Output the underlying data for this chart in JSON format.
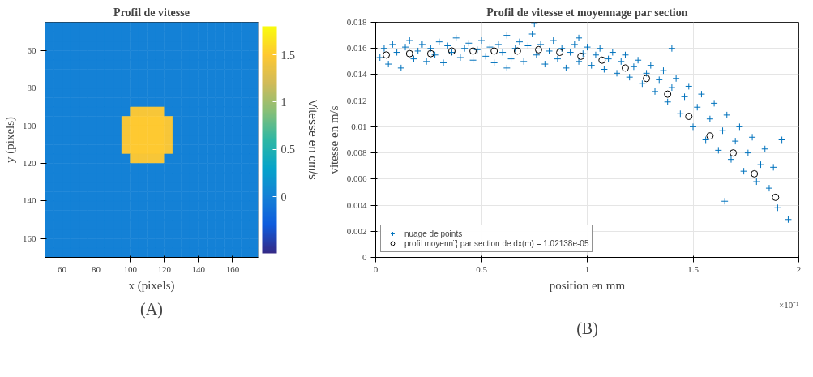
{
  "chart_data": [
    {
      "type": "heatmap",
      "title": "Profil de vitesse",
      "xlabel": "x (pixels)",
      "ylabel": "y (pixels)",
      "clabel": "Vitesse en cm/s",
      "annotations": [
        "(A)"
      ],
      "x": [
        52.5,
        57.5,
        62.5,
        67.5,
        72.5,
        77.5,
        82.5,
        87.5,
        92.5,
        97.5,
        102.5,
        107.5,
        112.5,
        117.5,
        122.5,
        127.5,
        132.5,
        137.5,
        142.5,
        147.5,
        152.5,
        157.5,
        162.5,
        167.5,
        172.5
      ],
      "y": [
        47.5,
        52.5,
        57.5,
        62.5,
        67.5,
        72.5,
        77.5,
        82.5,
        87.5,
        92.5,
        97.5,
        102.5,
        107.5,
        112.5,
        117.5,
        122.5,
        127.5,
        132.5,
        137.5,
        142.5,
        147.5,
        152.5,
        157.5,
        162.5,
        167.5
      ],
      "xlim": [
        50,
        175
      ],
      "ylim": [
        170,
        45
      ],
      "xticks": [
        60,
        80,
        100,
        120,
        140,
        160
      ],
      "yticks": [
        60,
        80,
        100,
        120,
        140,
        160
      ],
      "clim": [
        -0.6,
        1.8
      ],
      "cticks": [
        0,
        0.5,
        1,
        1.5
      ],
      "grid": false,
      "cells": [
        [
          0,
          0,
          0,
          0,
          0,
          0,
          0,
          0,
          0,
          0,
          0,
          0,
          0,
          0,
          0,
          0,
          0,
          0,
          0,
          0,
          0,
          0,
          0,
          0,
          0
        ],
        [
          0,
          0,
          0,
          0,
          0,
          0,
          0,
          0,
          0,
          0,
          0,
          0,
          0,
          0,
          0,
          0,
          0,
          0,
          0,
          0,
          0,
          0,
          0,
          0,
          0
        ],
        [
          0,
          0,
          0,
          0,
          0,
          0,
          0,
          0,
          0,
          0,
          0,
          0,
          0,
          0,
          0,
          0,
          0,
          0,
          0,
          0,
          0,
          0,
          0,
          0,
          0
        ],
        [
          0,
          0,
          0,
          0,
          0,
          0,
          0,
          0,
          0,
          0,
          0,
          0,
          0,
          0,
          0,
          0,
          0,
          0,
          0,
          0,
          0,
          0,
          0,
          0,
          0
        ],
        [
          0,
          0,
          0,
          0,
          0,
          0,
          0,
          0,
          0,
          0,
          0,
          0,
          0,
          0,
          0,
          0,
          0,
          0,
          0,
          0,
          0,
          0,
          0,
          0,
          0
        ],
        [
          0,
          0,
          0,
          0,
          0,
          0,
          0,
          0,
          0,
          0,
          0,
          0,
          0,
          0,
          0,
          0,
          0,
          0,
          0,
          0,
          0,
          0,
          0,
          0,
          0
        ],
        [
          0,
          0,
          0,
          0,
          0,
          0,
          0,
          0,
          0,
          0,
          0,
          0,
          0,
          0,
          0,
          0,
          0,
          0,
          0,
          0,
          0,
          0,
          0,
          0,
          0
        ],
        [
          0,
          0,
          0,
          0,
          0,
          0,
          0,
          0,
          0,
          0,
          0,
          0,
          0,
          0,
          0,
          0,
          0,
          0,
          0,
          0,
          0,
          0,
          0,
          0,
          0
        ],
        [
          0,
          0,
          0,
          0,
          0,
          0,
          0,
          0,
          0,
          0,
          0,
          0,
          0,
          0,
          0,
          0,
          0,
          0,
          0,
          0,
          0,
          0,
          0,
          0,
          0
        ],
        [
          0,
          0,
          0,
          0,
          0,
          0,
          0,
          0,
          0,
          0,
          1.45,
          1.45,
          1.45,
          1.45,
          0,
          0,
          0,
          0,
          0,
          0,
          0,
          0,
          0,
          0,
          0
        ],
        [
          0,
          0,
          0,
          0,
          0,
          0,
          0,
          0,
          0,
          1.45,
          1.5,
          1.5,
          1.5,
          1.5,
          1.45,
          0,
          0,
          0,
          0,
          0,
          0,
          0,
          0,
          0,
          0
        ],
        [
          0,
          0,
          0,
          0,
          0,
          0,
          0,
          0,
          0,
          1.45,
          1.5,
          1.5,
          1.5,
          1.5,
          1.45,
          0,
          0,
          0,
          0,
          0,
          0,
          0,
          0,
          0,
          0
        ],
        [
          0,
          0,
          0,
          0,
          0,
          0,
          0,
          0,
          0,
          1.45,
          1.5,
          1.5,
          1.5,
          1.5,
          1.45,
          0,
          0,
          0,
          0,
          0,
          0,
          0,
          0,
          0,
          0
        ],
        [
          0,
          0,
          0,
          0,
          0,
          0,
          0,
          0,
          0,
          1.45,
          1.5,
          1.5,
          1.5,
          1.5,
          1.45,
          0,
          0,
          0,
          0,
          0,
          0,
          0,
          0,
          0,
          0
        ],
        [
          0,
          0,
          0,
          0,
          0,
          0,
          0,
          0,
          0,
          0,
          1.45,
          1.45,
          1.45,
          1.45,
          0,
          0,
          0,
          0,
          0,
          0,
          0,
          0,
          0,
          0,
          0
        ],
        [
          0,
          0,
          0,
          0,
          0,
          0,
          0,
          0,
          0,
          0,
          0,
          0,
          0,
          0,
          0,
          0,
          0,
          0,
          0,
          0,
          0,
          0,
          0,
          0,
          0
        ],
        [
          0,
          0,
          0,
          0,
          0,
          0,
          0,
          0,
          0,
          0,
          0,
          0,
          0,
          0,
          0,
          0,
          0,
          0,
          0,
          0,
          0,
          0,
          0,
          0,
          0
        ],
        [
          0,
          0,
          0,
          0,
          0,
          0,
          0,
          0,
          0,
          0,
          0,
          0,
          0,
          0,
          0,
          0,
          0,
          0,
          0,
          0,
          0,
          0,
          0,
          0,
          0
        ],
        [
          0,
          0,
          0,
          0,
          0,
          0,
          0,
          0,
          0,
          0,
          0,
          0,
          0,
          0,
          0,
          0,
          0,
          0,
          0,
          0,
          0,
          0,
          0,
          0,
          0
        ],
        [
          0,
          0,
          0,
          0,
          0,
          0,
          0,
          0,
          0,
          0,
          0,
          0,
          0,
          0,
          0,
          0,
          0,
          0,
          0,
          0,
          0,
          0,
          0,
          0,
          0
        ],
        [
          0,
          0,
          0,
          0,
          0,
          0,
          0,
          0,
          0,
          0,
          0,
          0,
          0,
          0,
          0,
          0,
          0,
          0,
          0,
          0,
          0,
          0,
          0,
          0,
          0
        ],
        [
          0,
          0,
          0,
          0,
          0,
          0,
          0,
          0,
          0,
          0,
          0,
          0,
          0,
          0,
          0,
          0,
          0,
          0,
          0,
          0,
          0,
          0,
          0,
          0,
          0
        ],
        [
          0,
          0,
          0,
          0,
          0,
          0,
          0,
          0,
          0,
          0,
          0,
          0,
          0,
          0,
          0,
          0,
          0,
          0,
          0,
          0,
          0,
          0,
          0,
          0,
          0
        ],
        [
          0,
          0,
          0,
          0,
          0,
          0,
          0,
          0,
          0,
          0,
          0,
          0,
          0,
          0,
          0,
          0,
          0,
          0,
          0,
          0,
          0,
          0,
          0,
          0,
          0
        ],
        [
          0,
          0,
          0,
          0,
          0,
          0,
          0,
          0,
          0,
          0,
          0,
          0,
          0,
          0,
          0,
          0,
          0,
          0,
          0,
          0,
          0,
          0,
          0,
          0,
          0
        ]
      ]
    },
    {
      "type": "scatter",
      "title": "Profil de vitesse et moyennage par section",
      "xlabel": "position en mm",
      "ylabel": "vitesse en m/s",
      "annotations": [
        "×10⁻¹",
        "(B)"
      ],
      "xlim": [
        0,
        2
      ],
      "ylim": [
        0,
        0.018
      ],
      "xticks": [
        0,
        0.5,
        1,
        1.5,
        2
      ],
      "yticks": [
        0,
        0.002,
        0.004,
        0.006,
        0.008,
        0.01,
        0.012,
        0.014,
        0.016,
        0.018
      ],
      "grid": true,
      "legend": "bottom left",
      "series": [
        {
          "name": "nuage de points",
          "color": "#0072bd",
          "marker": "cross",
          "x": [
            0.02,
            0.04,
            0.06,
            0.08,
            0.1,
            0.12,
            0.14,
            0.16,
            0.18,
            0.2,
            0.22,
            0.24,
            0.26,
            0.28,
            0.3,
            0.32,
            0.34,
            0.36,
            0.38,
            0.4,
            0.42,
            0.44,
            0.46,
            0.48,
            0.5,
            0.52,
            0.54,
            0.56,
            0.58,
            0.6,
            0.62,
            0.64,
            0.66,
            0.68,
            0.7,
            0.72,
            0.74,
            0.75,
            0.76,
            0.78,
            0.8,
            0.82,
            0.84,
            0.86,
            0.88,
            0.9,
            0.92,
            0.94,
            0.96,
            0.98,
            1.0,
            1.02,
            1.04,
            1.06,
            1.08,
            1.1,
            1.12,
            1.14,
            1.16,
            1.18,
            1.2,
            1.22,
            1.24,
            1.26,
            1.28,
            1.3,
            1.32,
            1.34,
            1.36,
            1.38,
            1.4,
            1.42,
            1.44,
            1.46,
            1.48,
            1.5,
            1.52,
            1.54,
            1.56,
            1.58,
            1.6,
            1.62,
            1.64,
            1.65,
            1.66,
            1.68,
            1.7,
            1.72,
            1.74,
            1.76,
            1.78,
            1.8,
            1.82,
            1.84,
            1.86,
            1.88,
            1.9,
            1.92,
            1.95,
            0.62,
            1.4,
            0.96
          ],
          "values": [
            0.0153,
            0.016,
            0.0148,
            0.0163,
            0.0157,
            0.0145,
            0.0161,
            0.0166,
            0.0152,
            0.0158,
            0.0163,
            0.015,
            0.016,
            0.0155,
            0.0165,
            0.0149,
            0.0162,
            0.0157,
            0.0168,
            0.0153,
            0.016,
            0.0164,
            0.0151,
            0.0159,
            0.0166,
            0.0154,
            0.0161,
            0.0149,
            0.0163,
            0.0157,
            0.017,
            0.0152,
            0.016,
            0.0165,
            0.015,
            0.0162,
            0.0171,
            0.0179,
            0.0155,
            0.0163,
            0.0148,
            0.0158,
            0.0166,
            0.0152,
            0.016,
            0.0145,
            0.0157,
            0.0163,
            0.015,
            0.0156,
            0.0161,
            0.0147,
            0.0155,
            0.016,
            0.0144,
            0.0152,
            0.0157,
            0.0141,
            0.015,
            0.0155,
            0.0138,
            0.0146,
            0.0151,
            0.0133,
            0.0141,
            0.0147,
            0.0127,
            0.0136,
            0.0143,
            0.0119,
            0.013,
            0.0137,
            0.011,
            0.0123,
            0.0131,
            0.01,
            0.0115,
            0.0125,
            0.009,
            0.0106,
            0.0118,
            0.0082,
            0.0097,
            0.0043,
            0.0109,
            0.0075,
            0.0089,
            0.01,
            0.0066,
            0.008,
            0.0092,
            0.0058,
            0.0071,
            0.0083,
            0.0053,
            0.0069,
            0.0038,
            0.009,
            0.0029,
            0.0145,
            0.016,
            0.0168
          ]
        },
        {
          "name": "profil moyenn¨¦ par section de dx(m) = 1.02138e-05",
          "color": "#000000",
          "marker": "circle",
          "x": [
            0.05,
            0.16,
            0.26,
            0.36,
            0.46,
            0.56,
            0.67,
            0.77,
            0.87,
            0.97,
            1.07,
            1.18,
            1.28,
            1.38,
            1.48,
            1.58,
            1.69,
            1.79,
            1.89
          ],
          "values": [
            0.0155,
            0.0156,
            0.0156,
            0.0158,
            0.0158,
            0.0158,
            0.0158,
            0.0159,
            0.0157,
            0.0154,
            0.0151,
            0.0145,
            0.0137,
            0.0125,
            0.0108,
            0.0093,
            0.008,
            0.0064,
            0.0046
          ]
        }
      ]
    }
  ]
}
